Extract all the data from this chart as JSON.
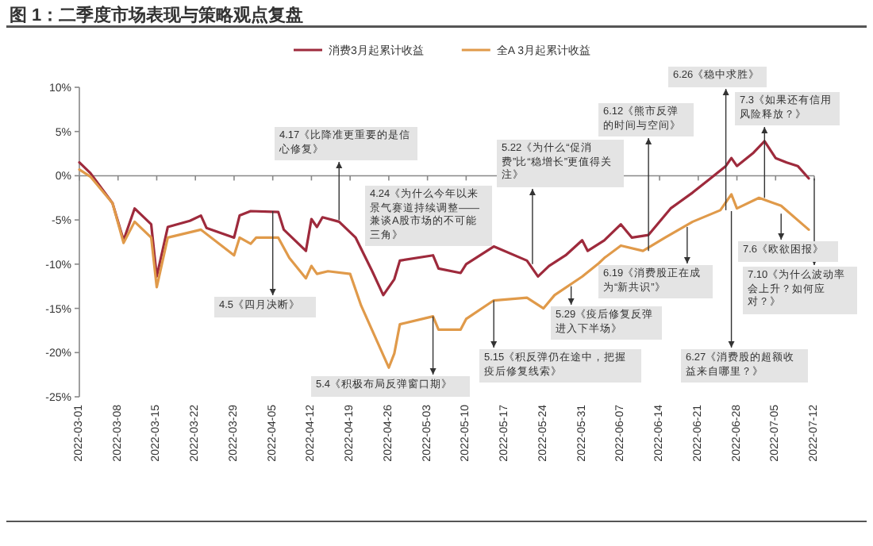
{
  "chart_data": {
    "type": "line",
    "title": "图 1：二季度市场表现与策略观点复盘",
    "legend": "top",
    "xlim": [
      "2022-03-01",
      "2022-07-12"
    ],
    "xticks": [
      "2022-03-01",
      "2022-03-08",
      "2022-03-15",
      "2022-03-22",
      "2022-03-29",
      "2022-04-05",
      "2022-04-12",
      "2022-04-19",
      "2022-04-26",
      "2022-05-03",
      "2022-05-10",
      "2022-05-17",
      "2022-05-24",
      "2022-05-31",
      "2022-06-07",
      "2022-06-14",
      "2022-06-21",
      "2022-06-28",
      "2022-07-05",
      "2022-07-12"
    ],
    "ylim": [
      -25,
      10
    ],
    "yticks": [
      {
        "value": 10,
        "label": "10%"
      },
      {
        "value": 5,
        "label": "5%"
      },
      {
        "value": 0,
        "label": "0%"
      },
      {
        "value": -5,
        "label": "-5%"
      },
      {
        "value": -10,
        "label": "-10%"
      },
      {
        "value": -15,
        "label": "-15%"
      },
      {
        "value": -20,
        "label": "-20%"
      },
      {
        "value": -25,
        "label": "-25%"
      }
    ],
    "series": [
      {
        "name": "消费3月起累计收益",
        "color": "#9e2a3c",
        "x": [
          "2022-03-01",
          "2022-03-03",
          "2022-03-07",
          "2022-03-09",
          "2022-03-11",
          "2022-03-14",
          "2022-03-15",
          "2022-03-17",
          "2022-03-21",
          "2022-03-23",
          "2022-03-24",
          "2022-03-29",
          "2022-03-30",
          "2022-04-01",
          "2022-04-06",
          "2022-04-07",
          "2022-04-11",
          "2022-04-12",
          "2022-04-13",
          "2022-04-14",
          "2022-04-17",
          "2022-04-20",
          "2022-04-23",
          "2022-04-25",
          "2022-04-27",
          "2022-04-28",
          "2022-05-04",
          "2022-05-05",
          "2022-05-09",
          "2022-05-10",
          "2022-05-15",
          "2022-05-21",
          "2022-05-23",
          "2022-05-25",
          "2022-05-28",
          "2022-05-31",
          "2022-06-01",
          "2022-06-04",
          "2022-06-07",
          "2022-06-09",
          "2022-06-12",
          "2022-06-16",
          "2022-06-20",
          "2022-06-23",
          "2022-06-26",
          "2022-06-27",
          "2022-06-28",
          "2022-07-01",
          "2022-07-03",
          "2022-07-05",
          "2022-07-07",
          "2022-07-09",
          "2022-07-11"
        ],
        "values": [
          1.5,
          0.3,
          -3.1,
          -7.3,
          -3.7,
          -5.5,
          -11.4,
          -5.8,
          -5.1,
          -4.5,
          -5.9,
          -7.0,
          -4.5,
          -4.0,
          -4.1,
          -6.1,
          -8.5,
          -4.9,
          -5.8,
          -4.7,
          -5.2,
          -7.0,
          -10.8,
          -13.5,
          -11.7,
          -9.6,
          -9.0,
          -10.5,
          -11.0,
          -10.0,
          -8.0,
          -9.6,
          -11.4,
          -10.2,
          -9.0,
          -7.3,
          -8.5,
          -7.3,
          -5.5,
          -7.0,
          -6.7,
          -3.7,
          -1.9,
          -0.4,
          1.1,
          2.0,
          1.1,
          2.6,
          3.9,
          2.0,
          1.5,
          1.1,
          -0.3
        ]
      },
      {
        "name": "全A 3月起累计收益",
        "color": "#e09a4a",
        "x": [
          "2022-03-01",
          "2022-03-03",
          "2022-03-07",
          "2022-03-09",
          "2022-03-11",
          "2022-03-14",
          "2022-03-15",
          "2022-03-17",
          "2022-03-23",
          "2022-03-29",
          "2022-03-30",
          "2022-04-01",
          "2022-04-02",
          "2022-04-06",
          "2022-04-08",
          "2022-04-11",
          "2022-04-12",
          "2022-04-13",
          "2022-04-15",
          "2022-04-19",
          "2022-04-21",
          "2022-04-26",
          "2022-04-27",
          "2022-04-28",
          "2022-05-04",
          "2022-05-05",
          "2022-05-09",
          "2022-05-10",
          "2022-05-15",
          "2022-05-21",
          "2022-05-24",
          "2022-05-26",
          "2022-05-31",
          "2022-06-03",
          "2022-06-04",
          "2022-06-07",
          "2022-06-11",
          "2022-06-15",
          "2022-06-20",
          "2022-06-25",
          "2022-06-27",
          "2022-06-28",
          "2022-07-02",
          "2022-07-06",
          "2022-07-11"
        ],
        "values": [
          0.7,
          -0.1,
          -3.1,
          -7.6,
          -5.2,
          -7.0,
          -12.6,
          -7.0,
          -6.1,
          -9.0,
          -7.0,
          -7.7,
          -7.0,
          -7.0,
          -9.3,
          -11.6,
          -10.2,
          -11.1,
          -10.8,
          -11.1,
          -14.7,
          -21.7,
          -20.1,
          -16.8,
          -15.9,
          -17.4,
          -17.4,
          -16.2,
          -14.1,
          -13.8,
          -15.0,
          -13.5,
          -11.4,
          -9.9,
          -9.3,
          -7.9,
          -8.5,
          -7.0,
          -5.2,
          -3.9,
          -2.1,
          -3.7,
          -2.5,
          -3.4,
          -6.1
        ]
      }
    ],
    "annotations": [
      {
        "text": "4.5《四月决断》",
        "x": "2022-04-05",
        "y": -4.0
      },
      {
        "text": "4.17《比降准更重要的是信心修复》",
        "x": "2022-04-17",
        "y": -5.0
      },
      "4.24《为什么今年以来景气赛道持续调整——兼谈A股市场的不可能三角》",
      {
        "text": "5.4《积极布局反弹窗口期》",
        "x": "2022-05-04",
        "y": -15.9
      },
      {
        "text": "5.15《积反弹仍在途中，把握疫后修复线索》",
        "x": "2022-05-15",
        "y": -14.1
      },
      {
        "text": "5.22《为什么“促消费”比“稳增长”更值得关注》",
        "x": "2022-05-22",
        "y": -10.0
      },
      {
        "text": "5.29《疫后修复反弹进入下半场》",
        "x": "2022-05-29",
        "y": -12.5
      },
      {
        "text": "6.12《熊市反弹的时间与空间》",
        "x": "2022-06-12",
        "y": -8.5
      },
      {
        "text": "6.19《消费股正在成为“新共识”》",
        "x": "2022-06-19",
        "y": -5.8
      },
      {
        "text": "6.26《稳中求胜》",
        "x": "2022-06-26",
        "y": -3.9
      },
      {
        "text": "6.27《消费股的超额收益来自哪里？》",
        "x": "2022-06-27",
        "y": -4.0
      },
      {
        "text": "7.3《如果还有信用风险释放？》",
        "x": "2022-07-03",
        "y": -2.5
      },
      {
        "text": "7.6《欧欲困报》",
        "x": "2022-07-06",
        "y": -4.3
      },
      {
        "text": "7.10《为什么波动率会上升？如何应对？》",
        "x": "2022-07-12",
        "y": -0.3
      }
    ]
  }
}
